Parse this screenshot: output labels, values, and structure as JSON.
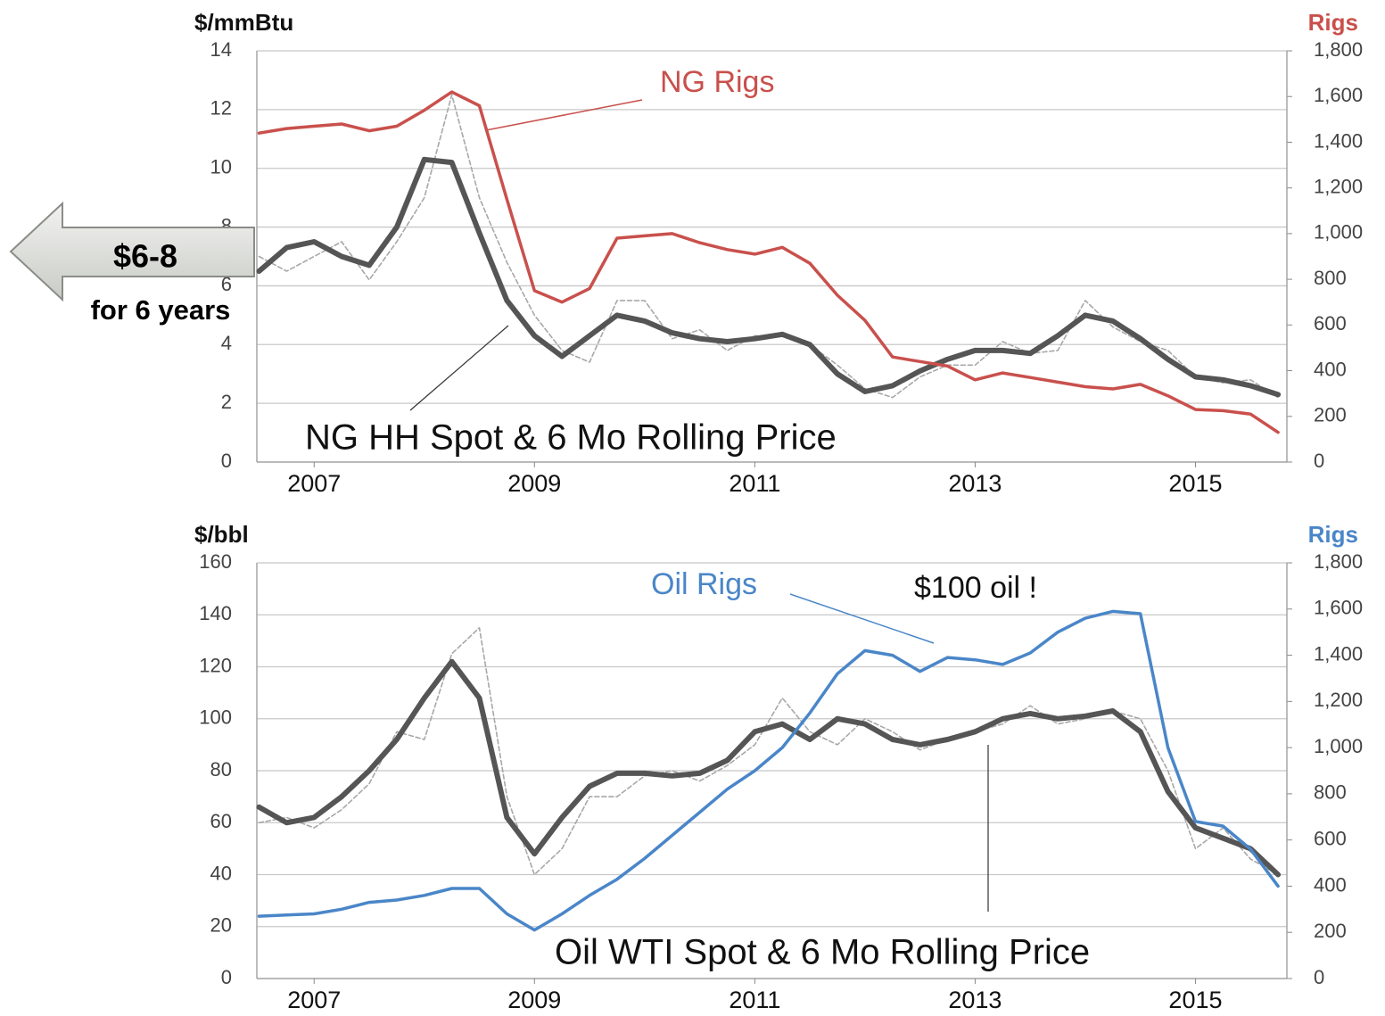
{
  "chart_data": [
    {
      "type": "line",
      "title": "NG HH Spot & 6 Mo Rolling Price",
      "y_label": "$/mmBtu",
      "y2_label": "Rigs",
      "y2_label_color": "#c9504c",
      "annotations": [
        "$6-8",
        "for 6 years"
      ],
      "x": [
        2006.5,
        2006.75,
        2007,
        2007.25,
        2007.5,
        2007.75,
        2008,
        2008.25,
        2008.5,
        2008.75,
        2009,
        2009.25,
        2009.5,
        2009.75,
        2010,
        2010.25,
        2010.5,
        2010.75,
        2011,
        2011.25,
        2011.5,
        2011.75,
        2012,
        2012.25,
        2012.5,
        2012.75,
        2013,
        2013.25,
        2013.5,
        2013.75,
        2014,
        2014.25,
        2014.5,
        2014.75,
        2015,
        2015.25,
        2015.5,
        2015.75
      ],
      "xlim": [
        2006.48,
        2015.83
      ],
      "xticks": [
        2007,
        2009,
        2011,
        2013,
        2015
      ],
      "ylim": [
        0,
        14
      ],
      "yticks": [
        0,
        2,
        4,
        6,
        8,
        10,
        12,
        14
      ],
      "y2lim": [
        0,
        1800
      ],
      "y2ticks": [
        0,
        200,
        400,
        600,
        800,
        {
          "value": 1000,
          "label": "1,000"
        },
        {
          "value": 1200,
          "label": "1,200"
        },
        {
          "value": 1400,
          "label": "1,400"
        },
        {
          "value": 1600,
          "label": "1,600"
        },
        {
          "value": 1800,
          "label": "1,800"
        }
      ],
      "grid": true,
      "series": [
        {
          "color": "#a8a8a8",
          "style": "dashed",
          "values": [
            7.0,
            6.5,
            7.0,
            7.5,
            6.2,
            7.5,
            9.0,
            12.5,
            9.0,
            6.8,
            5.0,
            3.8,
            3.4,
            5.5,
            5.5,
            4.2,
            4.5,
            3.8,
            4.3,
            4.3,
            4.0,
            3.3,
            2.5,
            2.2,
            2.9,
            3.3,
            3.3,
            4.1,
            3.7,
            3.8,
            5.5,
            4.6,
            4.1,
            3.8,
            2.9,
            2.7,
            2.8,
            2.2
          ]
        },
        {
          "color": "#555555",
          "style": "thick",
          "values": [
            6.5,
            7.3,
            7.5,
            7.0,
            6.7,
            8.0,
            10.3,
            10.2,
            7.8,
            5.5,
            4.3,
            3.6,
            4.3,
            5.0,
            4.8,
            4.4,
            4.2,
            4.1,
            4.2,
            4.35,
            4.0,
            3.0,
            2.4,
            2.6,
            3.1,
            3.5,
            3.8,
            3.8,
            3.7,
            4.3,
            5.0,
            4.8,
            4.2,
            3.5,
            2.9,
            2.8,
            2.6,
            2.3
          ]
        },
        {
          "name": "NG Rigs",
          "color": "#c9504c",
          "style": "solid",
          "axis": "y2",
          "values": [
            1440,
            1460,
            1470,
            1480,
            1450,
            1470,
            1540,
            1620,
            1560,
            1150,
            750,
            700,
            760,
            980,
            990,
            1000,
            960,
            930,
            910,
            940,
            870,
            730,
            620,
            460,
            440,
            420,
            360,
            390,
            370,
            350,
            330,
            320,
            340,
            290,
            230,
            225,
            210,
            130
          ]
        }
      ]
    },
    {
      "type": "line",
      "title": "Oil WTI Spot & 6 Mo Rolling Price",
      "y_label": "$/bbl",
      "y2_label": "Rigs",
      "y2_label_color": "#4a86c8",
      "annotations": [
        "$100 oil !"
      ],
      "x": [
        2006.5,
        2006.75,
        2007,
        2007.25,
        2007.5,
        2007.75,
        2008,
        2008.25,
        2008.5,
        2008.75,
        2009,
        2009.25,
        2009.5,
        2009.75,
        2010,
        2010.25,
        2010.5,
        2010.75,
        2011,
        2011.25,
        2011.5,
        2011.75,
        2012,
        2012.25,
        2012.5,
        2012.75,
        2013,
        2013.25,
        2013.5,
        2013.75,
        2014,
        2014.25,
        2014.5,
        2014.75,
        2015,
        2015.25,
        2015.5,
        2015.75
      ],
      "xlim": [
        2006.48,
        2015.83
      ],
      "xticks": [
        2007,
        2009,
        2011,
        2013,
        2015
      ],
      "ylim": [
        0,
        160
      ],
      "yticks": [
        0,
        20,
        40,
        60,
        80,
        100,
        120,
        140,
        160
      ],
      "y2lim": [
        0,
        1800
      ],
      "y2ticks": [
        0,
        200,
        400,
        600,
        800,
        {
          "value": 1000,
          "label": "1,000"
        },
        {
          "value": 1200,
          "label": "1,200"
        },
        {
          "value": 1400,
          "label": "1,400"
        },
        {
          "value": 1600,
          "label": "1,600"
        },
        {
          "value": 1800,
          "label": "1,800"
        }
      ],
      "grid": true,
      "series": [
        {
          "color": "#a8a8a8",
          "style": "dashed",
          "values": [
            60,
            62,
            58,
            65,
            75,
            95,
            92,
            125,
            135,
            70,
            40,
            50,
            70,
            70,
            78,
            80,
            76,
            82,
            90,
            108,
            95,
            90,
            100,
            95,
            88,
            92,
            95,
            98,
            105,
            98,
            100,
            103,
            100,
            80,
            50,
            58,
            46,
            40
          ]
        },
        {
          "color": "#555555",
          "style": "thick",
          "values": [
            66,
            60,
            62,
            70,
            80,
            92,
            108,
            122,
            108,
            62,
            48,
            62,
            74,
            79,
            79,
            78,
            79,
            84,
            95,
            98,
            92,
            100,
            98,
            92,
            90,
            92,
            95,
            100,
            102,
            100,
            101,
            103,
            95,
            72,
            58,
            54,
            50,
            40
          ]
        },
        {
          "name": "Oil Rigs",
          "color": "#4a86c8",
          "style": "solid",
          "axis": "y2",
          "values": [
            270,
            275,
            280,
            300,
            330,
            340,
            360,
            390,
            390,
            280,
            210,
            280,
            360,
            430,
            520,
            620,
            720,
            820,
            900,
            1000,
            1150,
            1320,
            1420,
            1400,
            1330,
            1390,
            1380,
            1360,
            1410,
            1500,
            1560,
            1590,
            1580,
            1000,
            680,
            660,
            560,
            400
          ]
        }
      ]
    }
  ]
}
